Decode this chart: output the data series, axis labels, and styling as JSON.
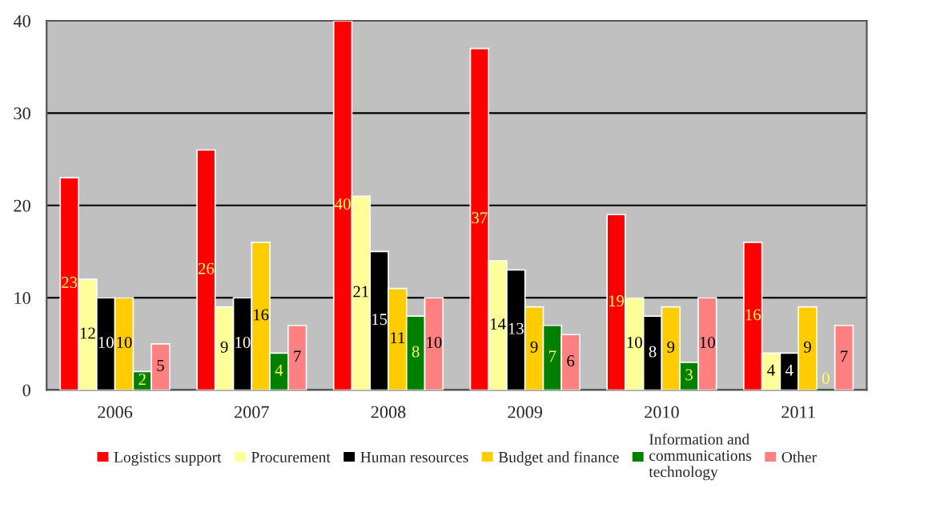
{
  "chart_data": {
    "type": "bar",
    "categories": [
      "2006",
      "2007",
      "2008",
      "2009",
      "2010",
      "2011"
    ],
    "series": [
      {
        "name": "Logistics support",
        "color": "#ff0000",
        "values": [
          23,
          26,
          40,
          37,
          19,
          16
        ]
      },
      {
        "name": "Procurement",
        "color": "#ffff99",
        "values": [
          12,
          9,
          21,
          14,
          10,
          4
        ]
      },
      {
        "name": "Human resources",
        "color": "#000000",
        "values": [
          10,
          10,
          15,
          13,
          8,
          4
        ]
      },
      {
        "name": "Budget and finance",
        "color": "#ffcc00",
        "values": [
          10,
          16,
          11,
          9,
          9,
          9
        ]
      },
      {
        "name": "Information and communications technology",
        "color": "#008000",
        "values": [
          2,
          4,
          8,
          7,
          3,
          0
        ]
      },
      {
        "name": "Other",
        "color": "#ff8080",
        "values": [
          5,
          7,
          10,
          6,
          10,
          7
        ]
      }
    ],
    "ylim": [
      0,
      40
    ],
    "yticks": [
      0,
      10,
      20,
      30,
      40
    ],
    "grid": "y",
    "legend": "bottom",
    "data_labels": true
  }
}
